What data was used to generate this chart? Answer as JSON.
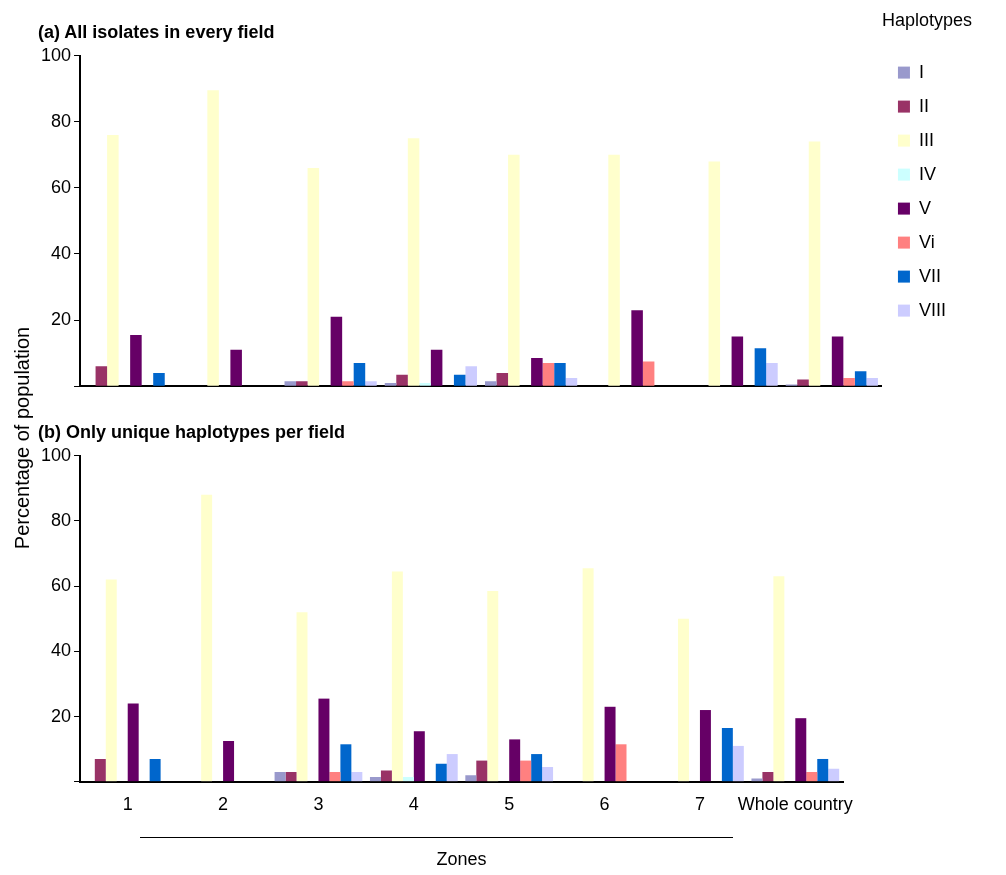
{
  "chart_data": [
    {
      "type": "bar",
      "title": "(a) All isolates in every field",
      "ylabel": "Percentage of population",
      "legend_title": "Haplotypes",
      "legend": "right",
      "tick_labels": "y",
      "grid": false,
      "categories": [
        null,
        null,
        null,
        null,
        null,
        null,
        null,
        null
      ],
      "ylim": [
        0,
        100
      ],
      "yticks": [
        {
          "value": 0,
          "label": null
        },
        20,
        40,
        60,
        80,
        100
      ],
      "series": [
        {
          "name": "I",
          "color": "#9999cc",
          "values": [
            0,
            0,
            1.5,
            1,
            1.5,
            0,
            0,
            0.5
          ]
        },
        {
          "name": "II",
          "color": "#993366",
          "values": [
            6,
            0,
            1.5,
            3.5,
            4,
            0,
            0,
            2
          ]
        },
        {
          "name": "III",
          "color": "#ffffcc",
          "values": [
            76,
            89.5,
            66,
            75,
            70,
            70,
            68,
            74
          ]
        },
        {
          "name": "IV",
          "color": "#ccffff",
          "values": [
            0,
            0,
            0,
            1,
            0,
            0,
            0,
            0
          ]
        },
        {
          "name": "V",
          "color": "#660066",
          "values": [
            15.5,
            11,
            21,
            11,
            8.5,
            23,
            15,
            15
          ]
        },
        {
          "name": "Vi",
          "color": "#ff8080",
          "values": [
            0,
            0,
            1.5,
            0,
            7,
            7.5,
            0,
            2.5
          ]
        },
        {
          "name": "VII",
          "color": "#0066cc",
          "values": [
            4,
            0,
            7,
            3.5,
            7,
            0,
            11.5,
            4.5
          ]
        },
        {
          "name": "VIII",
          "color": "#ccccff",
          "values": [
            0,
            0,
            1.5,
            6,
            2.5,
            0,
            7,
            2.5
          ]
        }
      ]
    },
    {
      "type": "bar",
      "title": "(b) Only unique haplotypes per field",
      "xlabel": "Zones",
      "legend": false,
      "grid": false,
      "categories": [
        "1",
        "2",
        "3",
        "4",
        "5",
        "6",
        "7",
        "Whole country"
      ],
      "ylim": [
        0,
        100
      ],
      "yticks": [
        {
          "value": 0,
          "label": null
        },
        20,
        40,
        60,
        80,
        100
      ],
      "series": [
        {
          "color": "#9999cc",
          "values": [
            0,
            0,
            3,
            1.5,
            2,
            0,
            0,
            1
          ]
        },
        {
          "color": "#993366",
          "values": [
            7,
            0,
            3,
            3.5,
            6.5,
            0,
            0,
            3
          ]
        },
        {
          "color": "#ffffcc",
          "values": [
            62,
            88,
            52,
            64.5,
            58.5,
            65.5,
            50,
            63
          ]
        },
        {
          "color": "#ccffff",
          "values": [
            0,
            0,
            0,
            1.5,
            0,
            0,
            0,
            0
          ]
        },
        {
          "color": "#660066",
          "values": [
            24,
            12.5,
            25.5,
            15.5,
            13,
            23,
            22,
            19.5
          ]
        },
        {
          "color": "#ff8080",
          "values": [
            0,
            0,
            3,
            0,
            6.5,
            11.5,
            0,
            3
          ]
        },
        {
          "color": "#0066cc",
          "values": [
            7,
            0,
            11.5,
            5.5,
            8.5,
            0,
            16.5,
            7
          ]
        },
        {
          "color": "#ccccff",
          "values": [
            0,
            0,
            3,
            8.5,
            4.5,
            0,
            11,
            4
          ]
        }
      ]
    }
  ]
}
